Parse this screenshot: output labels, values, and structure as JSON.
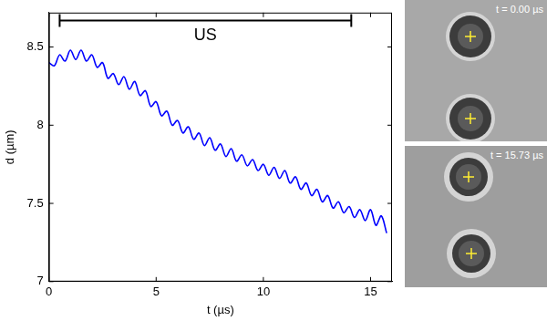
{
  "chart_data": {
    "type": "line",
    "x_label": "t (µs)",
    "y_label": "d (µm)",
    "xlim": [
      0,
      16
    ],
    "xticks": [
      0,
      5,
      10,
      15
    ],
    "ylim": [
      7,
      8.72
    ],
    "yticks": [
      7,
      7.5,
      8,
      8.5
    ],
    "grid": false,
    "series": [
      {
        "color": "#0000ff",
        "x": [
          0,
          0.25,
          0.5,
          0.75,
          1,
          1.25,
          1.5,
          1.75,
          2,
          2.25,
          2.5,
          2.75,
          3,
          3.25,
          3.5,
          3.75,
          4,
          4.25,
          4.5,
          4.75,
          5,
          5.25,
          5.5,
          5.75,
          6,
          6.25,
          6.5,
          6.75,
          7,
          7.25,
          7.5,
          7.75,
          8,
          8.25,
          8.5,
          8.75,
          9,
          9.25,
          9.5,
          9.75,
          10,
          10.25,
          10.5,
          10.75,
          11,
          11.25,
          11.5,
          11.75,
          12,
          12.25,
          12.5,
          12.75,
          13,
          13.25,
          13.5,
          13.75,
          14,
          14.25,
          14.5,
          14.75,
          15,
          15.25,
          15.5,
          15.75
        ],
        "values": [
          8.4,
          8.38,
          8.45,
          8.41,
          8.48,
          8.42,
          8.48,
          8.41,
          8.45,
          8.37,
          8.4,
          8.3,
          8.33,
          8.26,
          8.31,
          8.23,
          8.28,
          8.19,
          8.22,
          8.12,
          8.15,
          8.06,
          8.09,
          8.0,
          8.03,
          7.95,
          7.99,
          7.91,
          7.95,
          7.87,
          7.92,
          7.84,
          7.88,
          7.8,
          7.85,
          7.77,
          7.81,
          7.74,
          7.78,
          7.71,
          7.75,
          7.68,
          7.73,
          7.66,
          7.71,
          7.63,
          7.67,
          7.59,
          7.63,
          7.55,
          7.59,
          7.51,
          7.55,
          7.47,
          7.51,
          7.44,
          7.48,
          7.41,
          7.46,
          7.39,
          7.46,
          7.36,
          7.42,
          7.31
        ]
      }
    ],
    "annotations": [
      {
        "text": "US",
        "x_start": 0.5,
        "x_end": 14.1,
        "y": 8.67
      }
    ],
    "images": [
      {
        "label": "t = 0.00 µs"
      },
      {
        "label": "t = 15.73 µs"
      }
    ]
  }
}
